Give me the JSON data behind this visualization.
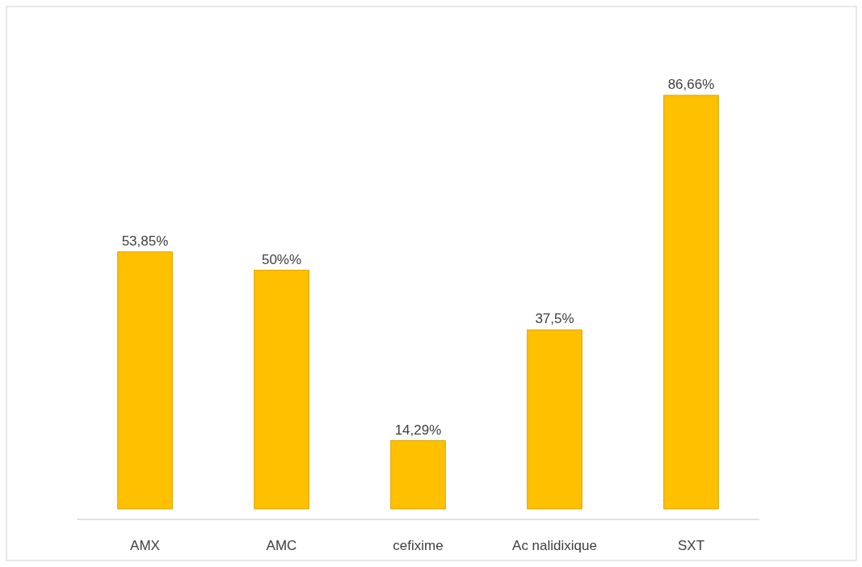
{
  "chart_data": {
    "type": "bar",
    "categories": [
      "AMX",
      "AMC",
      "cefixime",
      "Ac nalidixique",
      "SXT"
    ],
    "values": [
      53.85,
      50,
      14.29,
      37.5,
      86.66
    ],
    "value_labels": [
      "53,85%",
      "50%%",
      "14,29%",
      "37,5%",
      "86,66%"
    ],
    "color": "#ffc000"
  }
}
